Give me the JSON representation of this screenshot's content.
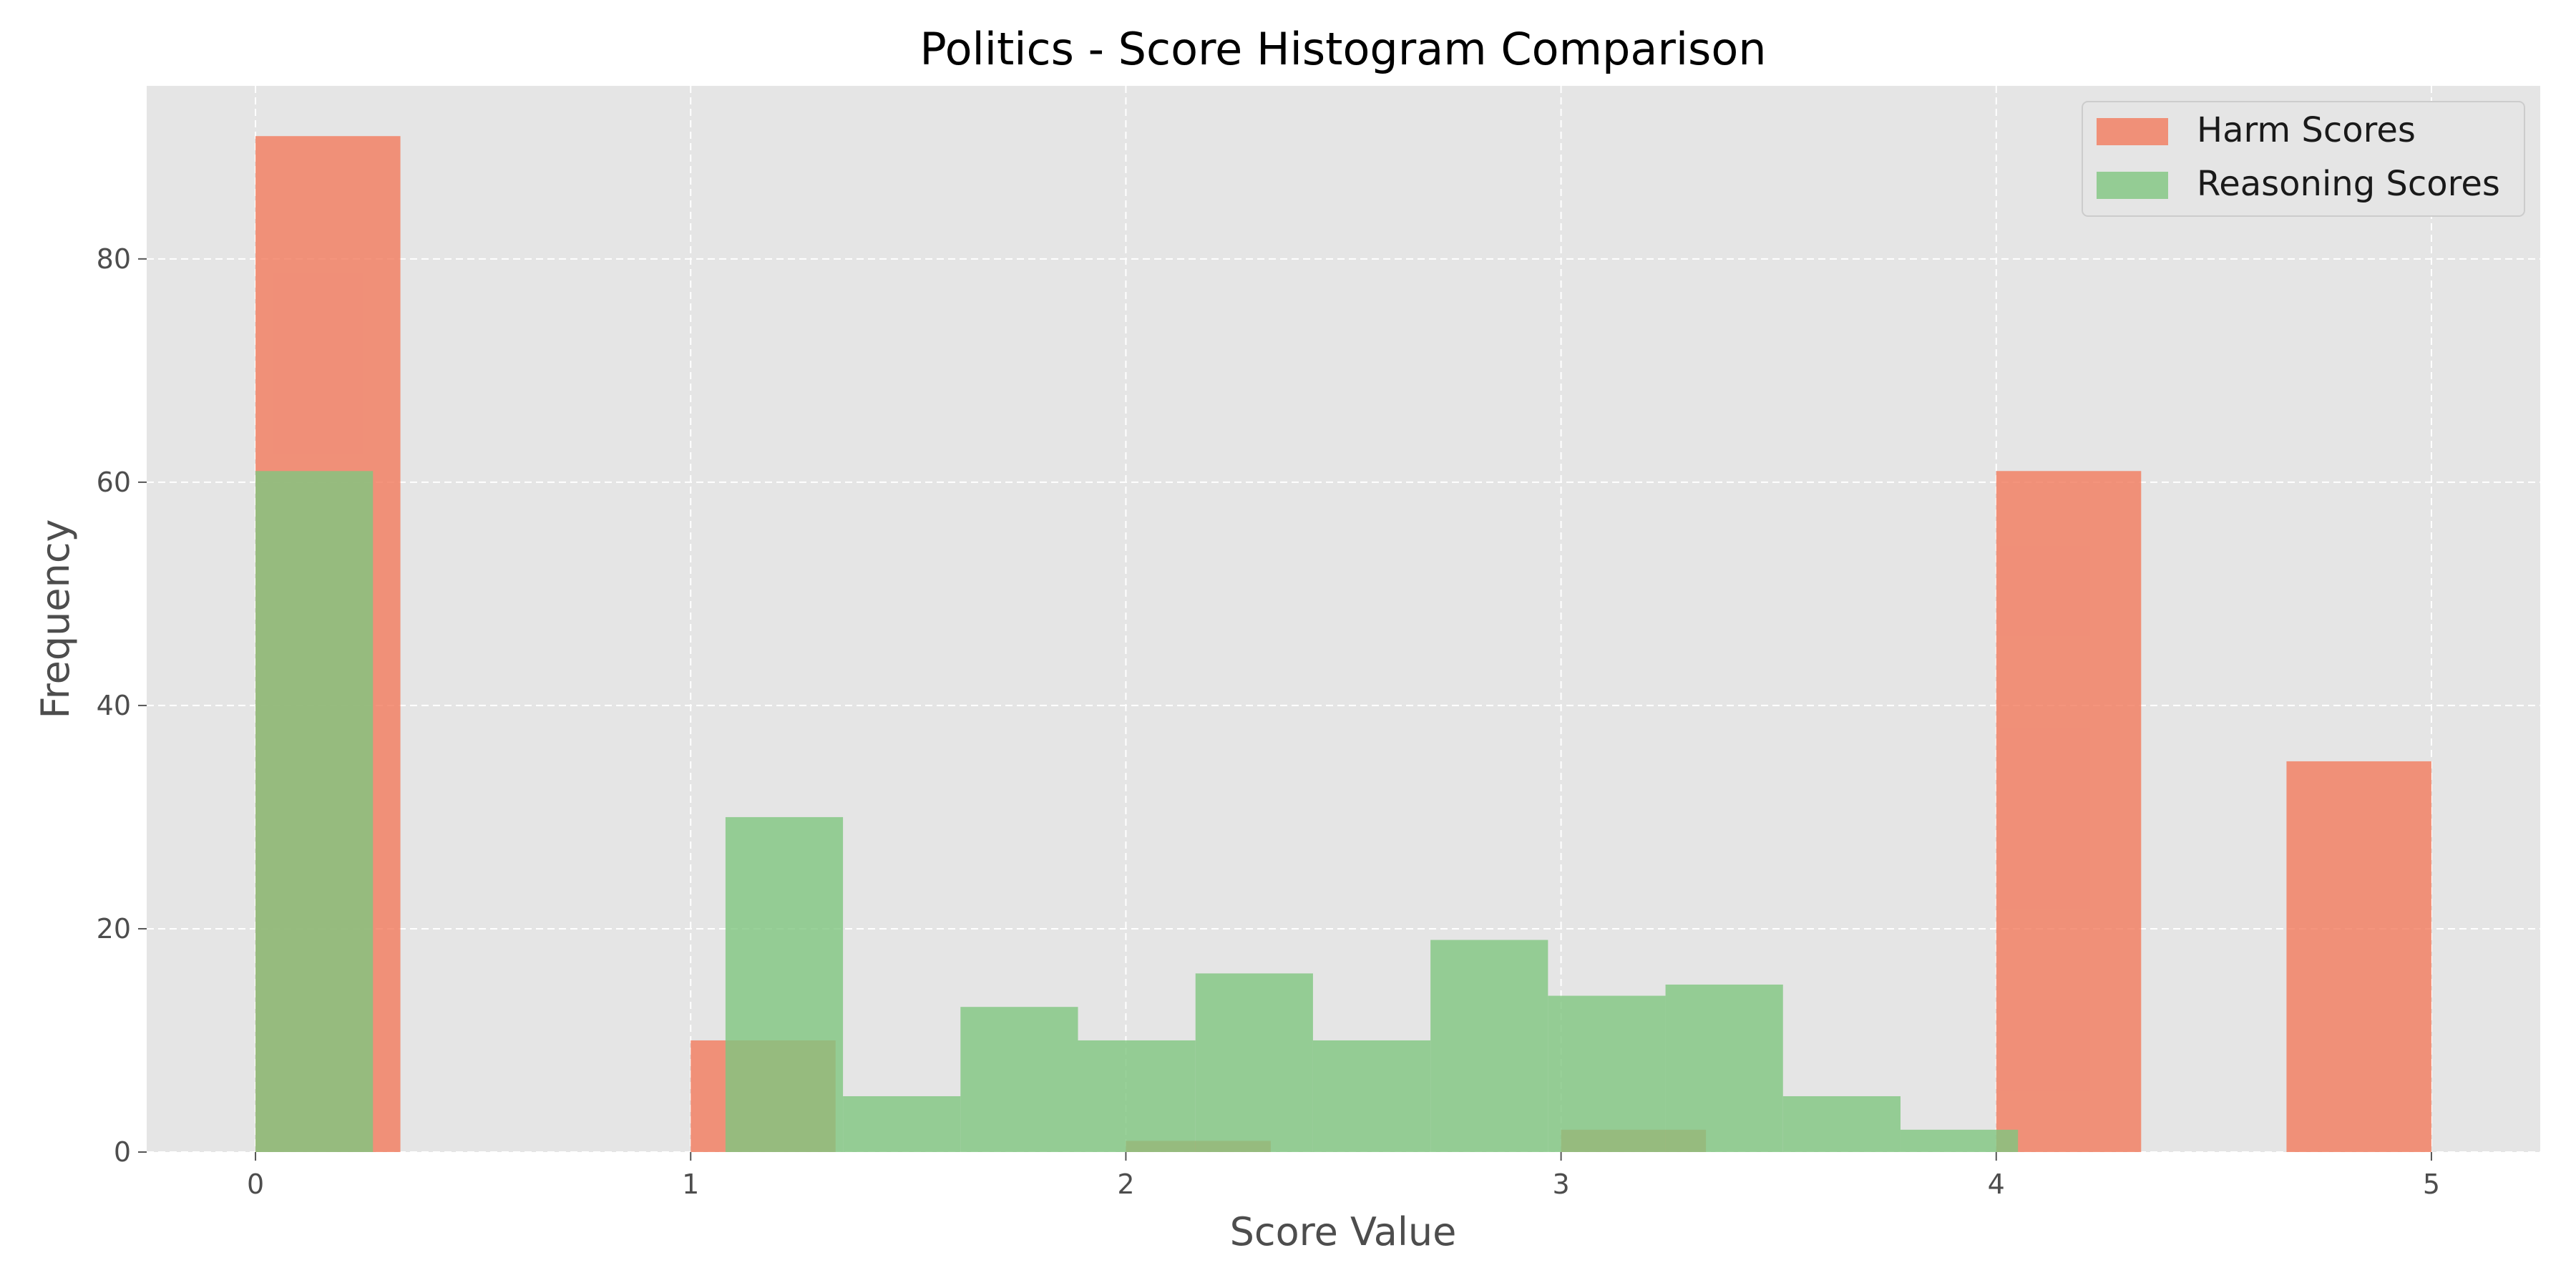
{
  "chart_data": {
    "type": "bar",
    "title": "Politics - Score Histogram Comparison",
    "xlabel": "Score Value",
    "ylabel": "Frequency",
    "xlim": [
      -0.25,
      5.25
    ],
    "ylim": [
      0,
      95.5
    ],
    "xticks": [
      0,
      1,
      2,
      3,
      4,
      5
    ],
    "yticks": [
      0,
      20,
      40,
      60,
      80
    ],
    "grid": true,
    "legend_position": "top-right",
    "colors": {
      "background": "#e5e5e5",
      "grid": "#ffffff",
      "harm": "#f37a5d",
      "reasoning": "#80c680"
    },
    "series": [
      {
        "name": "Harm Scores",
        "bins": [
          {
            "x0": 0.0,
            "x1": 0.333,
            "count": 91
          },
          {
            "x0": 1.0,
            "x1": 1.333,
            "count": 10
          },
          {
            "x0": 2.0,
            "x1": 2.333,
            "count": 1
          },
          {
            "x0": 3.0,
            "x1": 3.333,
            "count": 2
          },
          {
            "x0": 4.0,
            "x1": 4.333,
            "count": 61
          },
          {
            "x0": 4.667,
            "x1": 5.0,
            "count": 35
          }
        ]
      },
      {
        "name": "Reasoning Scores",
        "bins": [
          {
            "x0": 0.0,
            "x1": 0.27,
            "count": 61
          },
          {
            "x0": 1.08,
            "x1": 1.35,
            "count": 30
          },
          {
            "x0": 1.35,
            "x1": 1.62,
            "count": 5
          },
          {
            "x0": 1.62,
            "x1": 1.89,
            "count": 13
          },
          {
            "x0": 1.89,
            "x1": 2.16,
            "count": 10
          },
          {
            "x0": 2.16,
            "x1": 2.43,
            "count": 16
          },
          {
            "x0": 2.43,
            "x1": 2.7,
            "count": 10
          },
          {
            "x0": 2.7,
            "x1": 2.97,
            "count": 19
          },
          {
            "x0": 2.97,
            "x1": 3.24,
            "count": 14
          },
          {
            "x0": 3.24,
            "x1": 3.51,
            "count": 15
          },
          {
            "x0": 3.51,
            "x1": 3.78,
            "count": 5
          },
          {
            "x0": 3.78,
            "x1": 4.05,
            "count": 2
          }
        ]
      }
    ]
  }
}
